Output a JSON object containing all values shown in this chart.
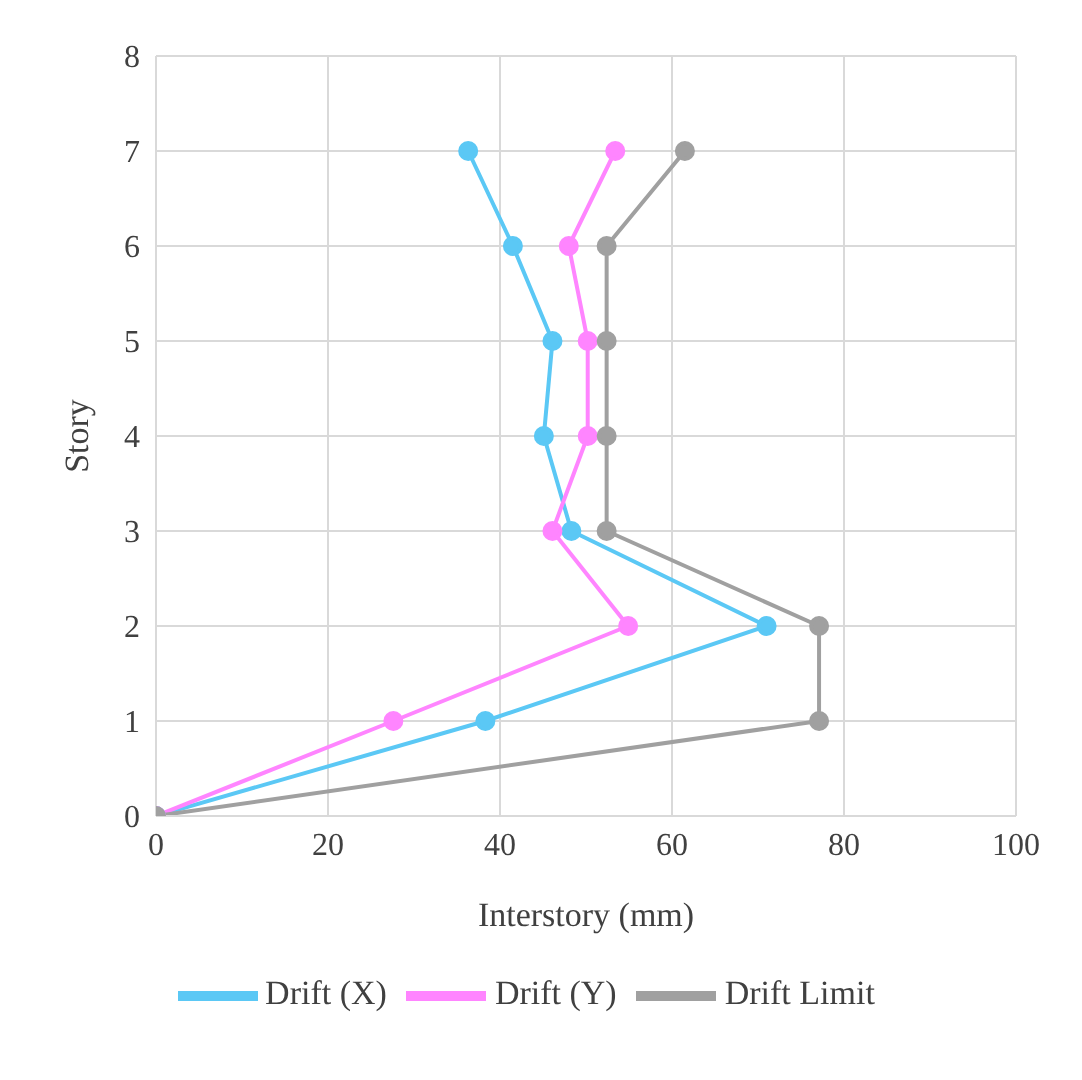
{
  "chart_data": {
    "type": "line",
    "xlabel": "Interstory (mm)",
    "ylabel": "Story",
    "xlim": [
      0,
      100
    ],
    "xticks": [
      0,
      20,
      40,
      60,
      80,
      100
    ],
    "ylim": [
      0,
      8
    ],
    "yticks": [
      0,
      1,
      2,
      3,
      4,
      5,
      6,
      7,
      8
    ],
    "grid": true,
    "legend": "bottom",
    "marker": "circle",
    "line_style": "solid",
    "series": [
      {
        "name": "Drift (X)",
        "color": "#5bc8f5",
        "x": [
          0,
          38.3,
          71,
          48.3,
          45.1,
          46.1,
          41.5,
          36.3
        ],
        "values": [
          0,
          1,
          2,
          3,
          4,
          5,
          6,
          7
        ]
      },
      {
        "name": "Drift (Y)",
        "color": "#ff85ff",
        "x": [
          0,
          27.6,
          54.9,
          46.1,
          50.2,
          50.2,
          48,
          53.4
        ],
        "values": [
          0,
          1,
          2,
          3,
          4,
          5,
          6,
          7
        ]
      },
      {
        "name": "Drift Limit",
        "color": "#a0a0a0",
        "x": [
          0,
          77.1,
          77.1,
          52.4,
          52.4,
          52.4,
          52.4,
          61.5
        ],
        "values": [
          0,
          1,
          2,
          3,
          4,
          5,
          6,
          7
        ]
      }
    ]
  }
}
